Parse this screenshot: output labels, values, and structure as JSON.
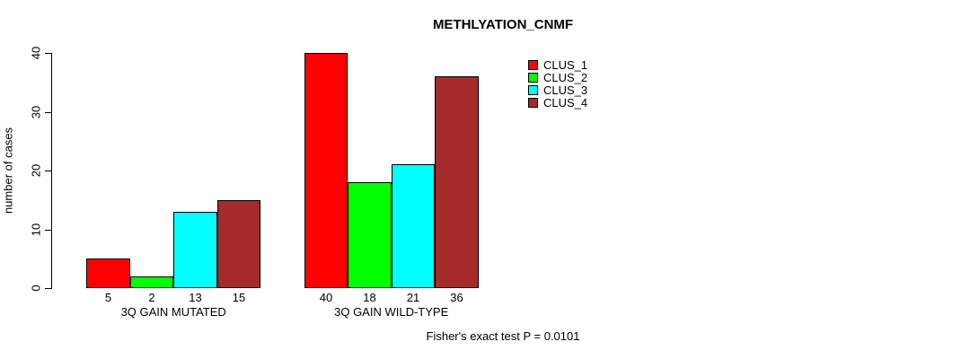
{
  "chart_data": {
    "type": "bar",
    "title": "METHLYATION_CNMF",
    "xlabel": "",
    "ylabel": "number of cases",
    "categories": [
      "3Q GAIN MUTATED",
      "3Q GAIN WILD-TYPE"
    ],
    "series": [
      {
        "name": "CLUS_1",
        "color": "#FF0000",
        "values": [
          5,
          40
        ]
      },
      {
        "name": "CLUS_2",
        "color": "#00FF00",
        "values": [
          2,
          18
        ]
      },
      {
        "name": "CLUS_3",
        "color": "#00FFFF",
        "values": [
          13,
          21
        ]
      },
      {
        "name": "CLUS_4",
        "color": "#A52A2A",
        "values": [
          15,
          36
        ]
      }
    ],
    "ylim": [
      0,
      40
    ],
    "yticks": [
      0,
      10,
      20,
      30,
      40
    ],
    "grid": false,
    "legend_position": "top-right",
    "bar_value_labels_shown": true,
    "annotation": "Fisher's exact test P = 0.0101",
    "axis_color": "#000000",
    "text_color": "#000000",
    "background_color": "#FFFFFF"
  }
}
